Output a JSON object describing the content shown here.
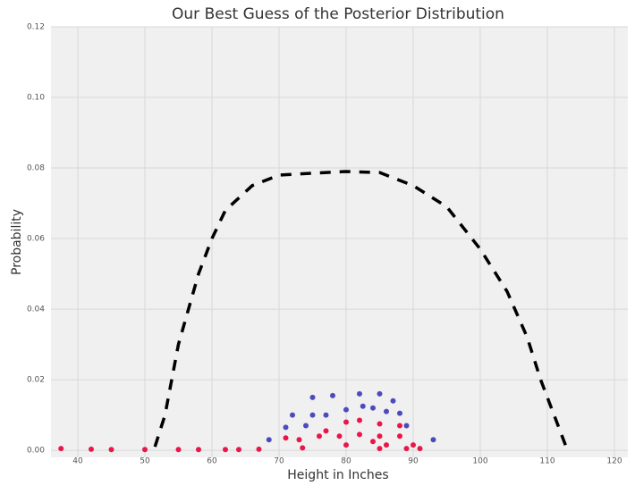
{
  "chart_data": {
    "type": "line",
    "title": "Our Best Guess of the Posterior Distribution",
    "x_label": "Height in Inches",
    "y_label": "Probability",
    "xlim": [
      36,
      122
    ],
    "ylim": [
      -0.002,
      0.12
    ],
    "xticks": [
      40,
      50,
      60,
      70,
      80,
      90,
      100,
      110,
      120
    ],
    "yticks": [
      {
        "value": 0,
        "label": "0.00"
      },
      0.02,
      0.04,
      0.06,
      0.08,
      {
        "value": 0.1,
        "label": "0.10"
      },
      0.12
    ],
    "grid": true,
    "series": [
      {
        "type": "line",
        "color": "#000000",
        "dashed": true,
        "x": [
          51.5,
          53,
          55,
          58,
          60,
          62,
          66,
          70,
          75,
          80,
          85,
          90,
          95,
          100,
          104,
          107,
          109,
          111,
          113
        ],
        "values": [
          0.001,
          0.01,
          0.03,
          0.05,
          0.06,
          0.068,
          0.075,
          0.078,
          0.0785,
          0.079,
          0.0787,
          0.075,
          0.069,
          0.057,
          0.045,
          0.032,
          0.02,
          0.01,
          0.0
        ]
      },
      {
        "type": "scatter",
        "color": "#4b4bbd",
        "x": [
          68.5,
          71,
          72,
          74,
          75,
          75,
          77,
          78,
          80,
          82,
          82.5,
          84,
          85,
          86,
          87,
          88,
          89,
          93
        ],
        "values": [
          0.003,
          0.0065,
          0.01,
          0.007,
          0.01,
          0.015,
          0.01,
          0.0155,
          0.0115,
          0.016,
          0.0125,
          0.012,
          0.016,
          0.011,
          0.014,
          0.0105,
          0.007,
          0.003
        ]
      },
      {
        "type": "scatter",
        "color": "#e8174a",
        "x": [
          37.5,
          42,
          45,
          50,
          55,
          58,
          62,
          64,
          67,
          71,
          73,
          73.5,
          76,
          77,
          79,
          80,
          80,
          82,
          82,
          84,
          85,
          85,
          85,
          86,
          88,
          88,
          89,
          90,
          91
        ],
        "values": [
          0.0005,
          0.0003,
          0.0002,
          0.0002,
          0.0002,
          0.0002,
          0.0002,
          0.0002,
          0.0003,
          0.0035,
          0.003,
          0.0007,
          0.004,
          0.0055,
          0.004,
          0.008,
          0.0015,
          0.0085,
          0.0045,
          0.0025,
          0.0075,
          0.004,
          0.0005,
          0.0015,
          0.007,
          0.004,
          0.0005,
          0.0015,
          0.0005
        ]
      }
    ]
  }
}
